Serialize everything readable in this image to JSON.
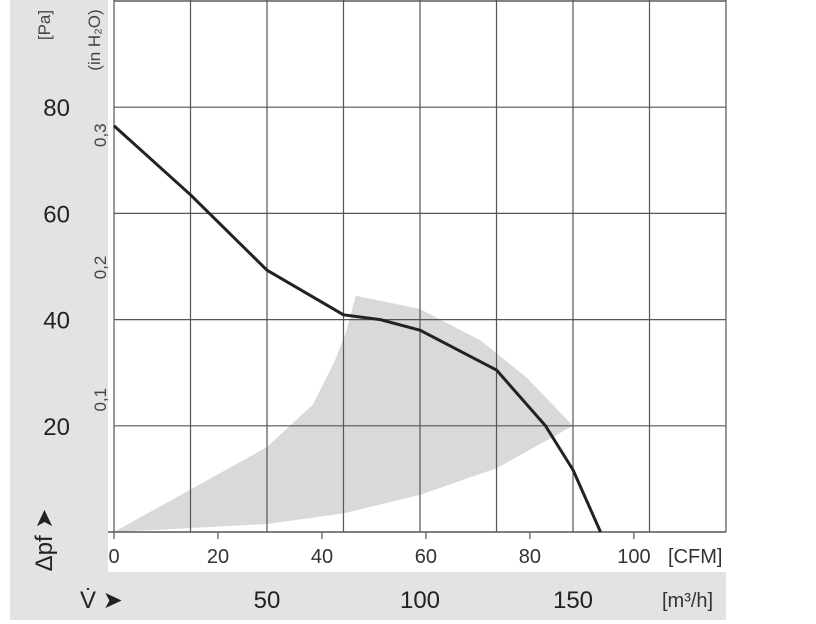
{
  "chart_data": {
    "type": "line",
    "x_primary": {
      "label": "[m³/h]",
      "symbol": "V̇ ➤",
      "ticks": [
        50,
        100,
        150
      ],
      "range": [
        0,
        200
      ]
    },
    "x_secondary": {
      "label": "[CFM]",
      "ticks": [
        0,
        20,
        40,
        60,
        80,
        100
      ]
    },
    "y_primary": {
      "label": "[Pa]",
      "symbol": "Δpf ➤",
      "ticks": [
        20,
        40,
        60,
        80
      ],
      "range": [
        0,
        100
      ]
    },
    "y_secondary": {
      "label": "(in H₂O)",
      "ticks": [
        "0,1",
        "0,2",
        "0,3"
      ],
      "tick_values": [
        0.1,
        0.2,
        0.3
      ]
    },
    "grid": true,
    "series": [
      {
        "color": "#222222",
        "x": [
          0,
          25,
          50,
          75,
          87,
          100,
          125,
          141,
          150,
          159
        ],
        "y": [
          76.5,
          63.5,
          49.3,
          40.9,
          40,
          38,
          30.5,
          20,
          11.7,
          0
        ]
      }
    ],
    "operating_region": {
      "color": "#d9d9d9",
      "x": [
        0,
        25,
        50,
        65,
        72,
        76,
        79,
        100,
        120,
        135,
        150,
        125,
        100,
        75,
        50,
        0
      ],
      "y": [
        0,
        8,
        16,
        24,
        32,
        38,
        44.5,
        42,
        36,
        29,
        20,
        12,
        7,
        3.5,
        1.5,
        0
      ]
    }
  }
}
